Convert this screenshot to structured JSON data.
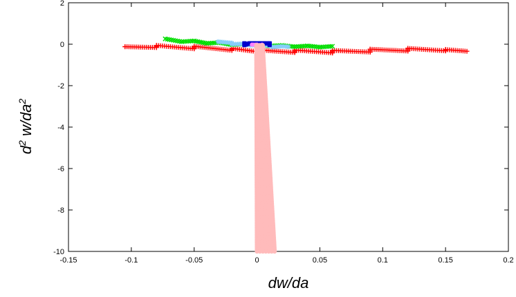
{
  "chart_data": {
    "type": "scatter",
    "xlabel": "dw/da",
    "ylabel_parts": {
      "d": "d",
      "sup1": "2",
      "mid": " w/da",
      "sup2": "2"
    },
    "xlim": [
      -0.15,
      0.2
    ],
    "ylim": [
      -10,
      2
    ],
    "x_ticks": [
      -0.15,
      -0.1,
      -0.05,
      0,
      0.05,
      0.1,
      0.15,
      0.2
    ],
    "x_tick_labels": [
      "-0.15",
      "-0.1",
      "-0.05",
      "0",
      "0.05",
      "0.1",
      "0.15",
      "0.2"
    ],
    "y_ticks": [
      -10,
      -8,
      -6,
      -4,
      -2,
      0,
      2
    ],
    "y_tick_labels": [
      "-10",
      "-8",
      "-6",
      "-4",
      "-2",
      "0",
      "2"
    ],
    "grid": false,
    "legend": false,
    "series": [
      {
        "color": "#ff0000",
        "marker": "plus",
        "shape": "band",
        "points": [
          [
            -0.105,
            -0.12
          ],
          [
            -0.08,
            -0.16
          ],
          [
            -0.05,
            -0.22
          ],
          [
            -0.02,
            -0.3
          ],
          [
            0.0,
            -0.36
          ],
          [
            0.03,
            -0.4
          ],
          [
            0.06,
            -0.42
          ],
          [
            0.09,
            -0.38
          ],
          [
            0.12,
            -0.33
          ],
          [
            0.15,
            -0.32
          ],
          [
            0.167,
            -0.34
          ],
          [
            -0.08,
            -0.06
          ],
          [
            -0.05,
            -0.1
          ],
          [
            -0.02,
            -0.2
          ],
          [
            0.0,
            -0.27
          ],
          [
            0.03,
            -0.28
          ],
          [
            0.06,
            -0.3
          ],
          [
            0.09,
            -0.24
          ],
          [
            0.12,
            -0.2
          ],
          [
            0.15,
            -0.26
          ]
        ]
      },
      {
        "color": "#00dd00",
        "marker": "cross",
        "shape": "band",
        "points": [
          [
            -0.073,
            0.26
          ],
          [
            -0.05,
            0.16
          ],
          [
            -0.03,
            0.08
          ],
          [
            -0.01,
            0.01
          ],
          [
            0.0,
            -0.02
          ],
          [
            0.02,
            -0.06
          ],
          [
            0.04,
            -0.08
          ],
          [
            0.06,
            -0.1
          ],
          [
            -0.06,
            0.12
          ],
          [
            -0.04,
            0.04
          ],
          [
            -0.02,
            -0.03
          ],
          [
            0.01,
            -0.08
          ],
          [
            0.03,
            -0.12
          ],
          [
            0.05,
            -0.14
          ]
        ]
      },
      {
        "color": "#87cefa",
        "marker": "star",
        "shape": "band",
        "points": [
          [
            -0.031,
            0.12
          ],
          [
            -0.02,
            0.06
          ],
          [
            -0.01,
            0.02
          ],
          [
            0.0,
            -0.02
          ],
          [
            0.01,
            -0.06
          ],
          [
            0.02,
            -0.1
          ],
          [
            0.025,
            -0.12
          ],
          [
            -0.02,
            0.0
          ],
          [
            -0.005,
            -0.06
          ],
          [
            0.012,
            -0.14
          ]
        ]
      },
      {
        "color": "#0000cc",
        "marker": "square",
        "shape": "band",
        "points": [
          [
            -0.01,
            0.04
          ],
          [
            -0.006,
            0.04
          ],
          [
            -0.002,
            0.04
          ],
          [
            0.002,
            0.04
          ],
          [
            0.006,
            0.04
          ],
          [
            0.01,
            0.04
          ],
          [
            -0.01,
            -0.04
          ],
          [
            0.01,
            -0.04
          ]
        ]
      },
      {
        "color": "#ff80ff",
        "marker": "dot",
        "shape": "band",
        "points": [
          [
            -0.004,
            -0.02
          ],
          [
            0.0,
            -0.02
          ],
          [
            0.004,
            -0.02
          ],
          [
            0.0,
            -0.1
          ]
        ]
      },
      {
        "color": "#ffbbbb",
        "marker": "circle",
        "shape": "column",
        "column_top": -0.05,
        "column_bottom": -10.0,
        "column_center_top": 0.002,
        "column_center_bottom": 0.007,
        "column_halfwidth_top": 0.0025,
        "column_halfwidth_bottom": 0.007
      }
    ]
  }
}
